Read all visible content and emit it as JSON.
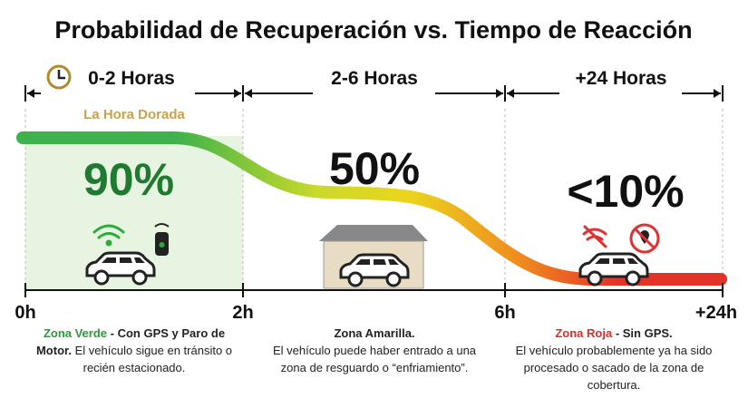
{
  "title": "Probabilidad de Recuperación vs. Tiempo de Reacción",
  "zones": [
    {
      "header": "0-2 Horas",
      "subheader": "La Hora Dorada",
      "percent": "90%",
      "desc_label": "Zona Verde",
      "desc_label_rest": "- Con GPS y Paro de Motor.",
      "desc_text": "El vehículo sigue en tránsito o recién estacionado."
    },
    {
      "header": "2-6 Horas",
      "percent": "50%",
      "desc_label": "Zona Amarilla.",
      "desc_text": "El vehículo puede haber entrado a una zona de resguardo o “enfriamiento”."
    },
    {
      "header": "+24 Horas",
      "percent": "<10%",
      "desc_label": "Zona Roja",
      "desc_label_rest": "- Sin GPS.",
      "desc_text": "El vehículo probablemente ya ha sido procesado o sacado de la zona de cobertura."
    }
  ],
  "axis_labels": [
    "0h",
    "2h",
    "6h",
    "+24h"
  ]
}
